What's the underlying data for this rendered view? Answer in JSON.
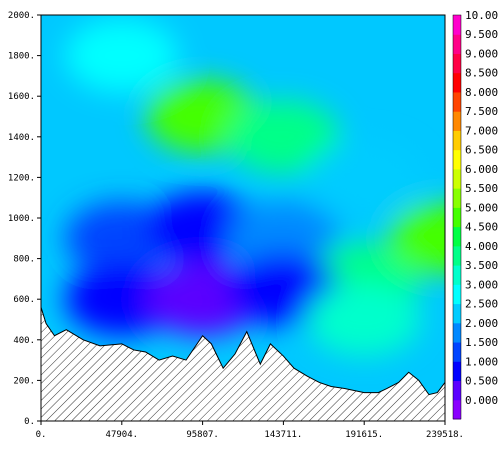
{
  "chart_data": {
    "type": "heatmap",
    "title": "",
    "xlabel": "",
    "ylabel": "",
    "x_ticks": [
      "0.",
      "47904.",
      "95807.",
      "143711.",
      "191615.",
      "239518."
    ],
    "x_range": [
      0,
      239518
    ],
    "y_ticks": [
      "0.",
      "200.",
      "400.",
      "600.",
      "800.",
      "1000.",
      "1200.",
      "1400.",
      "1600.",
      "1800.",
      "2000."
    ],
    "y_range": [
      0,
      2000
    ],
    "colorbar": {
      "levels": [
        "0.000",
        "0.500",
        "1.000",
        "1.500",
        "2.000",
        "2.500",
        "3.000",
        "3.500",
        "4.000",
        "4.500",
        "5.000",
        "5.500",
        "6.000",
        "6.500",
        "7.000",
        "7.500",
        "8.000",
        "8.500",
        "9.000",
        "9.500",
        "10.00"
      ],
      "colors": [
        "#8a00ff",
        "#5a00ff",
        "#0000ff",
        "#0044ff",
        "#0088ff",
        "#00ccff",
        "#00ffff",
        "#00ffcc",
        "#00ff88",
        "#00ff44",
        "#44ff00",
        "#88ff00",
        "#ccff00",
        "#ffff00",
        "#ffcc00",
        "#ff8800",
        "#ff4400",
        "#ff0000",
        "#ff0044",
        "#ff0088",
        "#ff00cc"
      ]
    },
    "colors": {
      "bg": "#ffffff",
      "field_low": "#1400ff",
      "field_mid": "#00c8ff",
      "field_high": "#4cff2a",
      "terrain_hatch": "#333333"
    },
    "field_estimates": [
      {
        "x": 47904,
        "y": 1800,
        "value": 2.5
      },
      {
        "x": 95807,
        "y": 1500,
        "value": 4.5
      },
      {
        "x": 143711,
        "y": 1400,
        "value": 3.5
      },
      {
        "x": 191615,
        "y": 1200,
        "value": 2.0
      },
      {
        "x": 47904,
        "y": 900,
        "value": 1.0
      },
      {
        "x": 95807,
        "y": 950,
        "value": 0.5
      },
      {
        "x": 143711,
        "y": 900,
        "value": 1.5
      },
      {
        "x": 191615,
        "y": 700,
        "value": 3.5
      },
      {
        "x": 239518,
        "y": 900,
        "value": 4.5
      },
      {
        "x": 47904,
        "y": 600,
        "value": 0.5
      },
      {
        "x": 95807,
        "y": 600,
        "value": 0.0
      },
      {
        "x": 143711,
        "y": 650,
        "value": 0.5
      },
      {
        "x": 191615,
        "y": 500,
        "value": 3.0
      }
    ],
    "terrain": {
      "x": [
        0,
        3000,
        8000,
        15000,
        25000,
        35000,
        47904,
        55000,
        62000,
        70000,
        78000,
        86000,
        95807,
        101000,
        108000,
        115000,
        122000,
        130000,
        136000,
        143711,
        150000,
        158000,
        165000,
        172000,
        180000,
        191615,
        200000,
        205000,
        212000,
        218000,
        224000,
        230000,
        235000,
        239518
      ],
      "y": [
        560,
        480,
        420,
        450,
        400,
        370,
        380,
        350,
        340,
        300,
        320,
        300,
        420,
        380,
        260,
        330,
        440,
        280,
        380,
        320,
        260,
        220,
        190,
        170,
        160,
        140,
        140,
        160,
        190,
        240,
        200,
        130,
        140,
        190
      ]
    }
  }
}
